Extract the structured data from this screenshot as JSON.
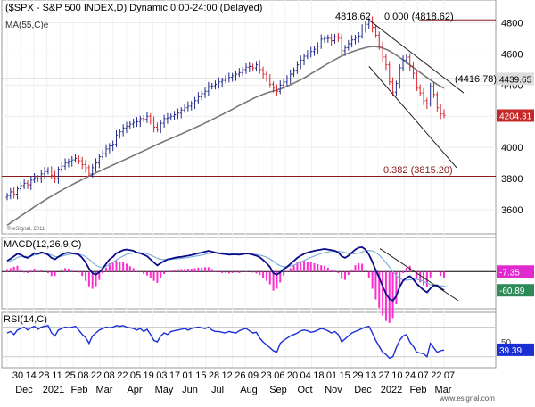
{
  "chart_data": {
    "type": "line",
    "colors": {
      "background": "#ffffff",
      "axis_bg": "#ffffff",
      "up_bar": "#1f2a8a",
      "down_bar": "#d8232a",
      "ma": "#777777",
      "level_line": "#8a1a1a",
      "trend_line": "#222222",
      "macd": "#0b0b8a",
      "signal": "#7fb0d8",
      "hist": "#ff2dd0",
      "rsi": "#1a2fd6",
      "price_tag_bg": "#c62828",
      "macd_tag_bg": "#e02ad0",
      "signal_tag_bg": "#2e8b57",
      "rsi_tag_bg": "#1a2fd6"
    },
    "panels": [
      {
        "id": "price",
        "title": "$SPX - S&P 500 INDEX,D) Dynamic,0:00-24:00 (Delayed)",
        "title_prefix": "(",
        "subtitle": "MA(55,C)e",
        "watermark": "© eSignal, 2011",
        "y_ticks": [
          3600,
          3800,
          4000,
          4200,
          4400,
          4600,
          4800
        ],
        "y_range": [
          3480,
          4900
        ],
        "last_price_label": "4204.31",
        "level_labels": [
          {
            "label": "4439.65",
            "value": 4439.65
          },
          {
            "label": "(4416.78)",
            "value": 4416.78
          }
        ],
        "annotations": [
          {
            "label": "4818.62",
            "value": 4818.62
          },
          {
            "label": "0.000 (4818.62)",
            "value": 4818.62
          },
          {
            "label": "0.382 (3815.20)",
            "value": 3815.2
          }
        ],
        "series": [
          {
            "kind": "ohlc",
            "values_close": [
              3690,
              3715,
              3700,
              3735,
              3755,
              3770,
              3760,
              3790,
              3805,
              3800,
              3830,
              3845,
              3855,
              3820,
              3800,
              3860,
              3880,
              3900,
              3910,
              3920,
              3930,
              3915,
              3890,
              3870,
              3830,
              3870,
              3900,
              3940,
              3960,
              3990,
              4010,
              4020,
              4080,
              4100,
              4125,
              4135,
              4150,
              4160,
              4165,
              4185,
              4180,
              4200,
              4175,
              4130,
              4115,
              4155,
              4185,
              4190,
              4200,
              4210,
              4220,
              4240,
              4255,
              4265,
              4280,
              4300,
              4325,
              4345,
              4360,
              4390,
              4395,
              4405,
              4420,
              4430,
              4440,
              4450,
              4460,
              4470,
              4480,
              4500,
              4515,
              4520,
              4510,
              4530,
              4500,
              4470,
              4440,
              4405,
              4380,
              4360,
              4400,
              4420,
              4440,
              4470,
              4495,
              4530,
              4560,
              4585,
              4600,
              4615,
              4630,
              4650,
              4695,
              4700,
              4700,
              4685,
              4710,
              4700,
              4620,
              4640,
              4665,
              4690,
              4705,
              4715,
              4760,
              4790,
              4810,
              4770,
              4720,
              4650,
              4580,
              4530,
              4420,
              4355,
              4410,
              4510,
              4560,
              4580,
              4520,
              4475,
              4380,
              4350,
              4300,
              4280,
              4390,
              4340,
              4255,
              4215,
              4205
            ],
            "ohlc_first_date": "2020-11-30",
            "ohlc_last_date": "2022-03-07"
          },
          {
            "name": "MA(55,C)",
            "values": [
              3500,
              3516,
              3531,
              3546,
              3561,
              3575,
              3590,
              3604,
              3619,
              3633,
              3647,
              3661,
              3674,
              3687,
              3700,
              3713,
              3725,
              3737,
              3749,
              3760,
              3772,
              3783,
              3794,
              3805,
              3816,
              3826,
              3837,
              3847,
              3857,
              3867,
              3877,
              3887,
              3897,
              3907,
              3917,
              3927,
              3937,
              3947,
              3958,
              3968,
              3978,
              3988,
              3999,
              4009,
              4019,
              4029,
              4039,
              4048,
              4058,
              4067,
              4077,
              4086,
              4096,
              4106,
              4116,
              4126,
              4136,
              4146,
              4157,
              4167,
              4178,
              4189,
              4200,
              4211,
              4222,
              4233,
              4245,
              4257,
              4269,
              4280,
              4291,
              4302,
              4313,
              4323,
              4332,
              4341,
              4349,
              4356,
              4362,
              4368,
              4375,
              4383,
              4392,
              4402,
              4412,
              4423,
              4434,
              4446,
              4459,
              4472,
              4485,
              4499,
              4512,
              4525,
              4538,
              4551,
              4563,
              4575,
              4586,
              4596,
              4605,
              4613,
              4621,
              4628,
              4634,
              4640,
              4645,
              4647,
              4647,
              4644,
              4638,
              4630,
              4619,
              4606,
              4592,
              4577,
              4561,
              4545,
              4529,
              4513,
              4497,
              4481,
              4465,
              4449,
              4433,
              4418,
              4404,
              4391,
              4380
            ]
          }
        ]
      },
      {
        "id": "macd",
        "title": "MACD(12,26,9,C)",
        "tag_values": [
          {
            "label": "-7.35",
            "value": -7.35
          },
          {
            "label": "-60.89",
            "value": -60.89
          }
        ],
        "y_ticks": [],
        "series": [
          {
            "name": "MACD",
            "values": [
              35,
              42,
              50,
              58,
              55,
              48,
              45,
              52,
              60,
              58,
              63,
              60,
              55,
              45,
              40,
              48,
              55,
              60,
              62,
              60,
              58,
              55,
              45,
              30,
              10,
              -5,
              -10,
              -2,
              10,
              25,
              40,
              48,
              60,
              65,
              70,
              72,
              70,
              68,
              62,
              60,
              55,
              50,
              40,
              30,
              20,
              28,
              34,
              40,
              42,
              45,
              47,
              48,
              50,
              52,
              54,
              57,
              60,
              62,
              65,
              68,
              65,
              62,
              60,
              58,
              57,
              55,
              56,
              56,
              55,
              57,
              59,
              58,
              55,
              52,
              47,
              38,
              28,
              15,
              -5,
              -10,
              -3,
              8,
              15,
              25,
              35,
              45,
              52,
              58,
              62,
              65,
              68,
              70,
              72,
              74,
              72,
              70,
              68,
              63,
              50,
              45,
              52,
              62,
              72,
              78,
              80,
              72,
              55,
              32,
              5,
              -20,
              -48,
              -72,
              -90,
              -95,
              -80,
              -50,
              -30,
              -20,
              -15,
              -25,
              -40,
              -50,
              -60,
              -68,
              -55,
              -45,
              -45,
              -55,
              -61
            ]
          },
          {
            "name": "Signal",
            "values": [
              30,
              35,
              40,
              46,
              50,
              50,
              48,
              50,
              54,
              56,
              59,
              60,
              58,
              54,
              49,
              48,
              50,
              53,
              56,
              58,
              58,
              57,
              54,
              49,
              40,
              30,
              20,
              15,
              14,
              17,
              23,
              30,
              38,
              45,
              51,
              56,
              59,
              61,
              61,
              61,
              60,
              58,
              54,
              49,
              43,
              40,
              39,
              39,
              40,
              41,
              42,
              43,
              45,
              46,
              48,
              50,
              52,
              54,
              56,
              59,
              60,
              61,
              61,
              61,
              60,
              59,
              59,
              58,
              58,
              58,
              58,
              58,
              57,
              56,
              54,
              51,
              47,
              41,
              34,
              25,
              19,
              16,
              16,
              18,
              21,
              26,
              31,
              36,
              42,
              46,
              51,
              55,
              59,
              62,
              64,
              66,
              66,
              66,
              65,
              62,
              59,
              58,
              59,
              61,
              64,
              68,
              69,
              67,
              62,
              54,
              42,
              29,
              15,
              0,
              -13,
              -22,
              -27,
              -28,
              -27,
              -25,
              -25,
              -28,
              -32,
              -37,
              -43,
              -46,
              -46,
              -46,
              -48,
              -50
            ]
          }
        ]
      },
      {
        "id": "rsi",
        "title": "RSI(14,C)",
        "tag_values": [
          {
            "label": "39.39",
            "value": 39.39
          }
        ],
        "y_ticks": [
          {
            "label": "50",
            "value": 50
          }
        ],
        "series": [
          {
            "name": "RSI",
            "values": [
              62,
              64,
              60,
              66,
              68,
              70,
              66,
              69,
              71,
              67,
              70,
              71,
              72,
              62,
              58,
              66,
              68,
              70,
              69,
              70,
              71,
              66,
              60,
              56,
              48,
              58,
              62,
              66,
              68,
              70,
              69,
              70,
              72,
              71,
              72,
              70,
              69,
              68,
              66,
              68,
              64,
              67,
              60,
              52,
              50,
              58,
              62,
              60,
              64,
              65,
              66,
              67,
              68,
              66,
              68,
              69,
              70,
              69,
              68,
              70,
              66,
              64,
              64,
              63,
              62,
              64,
              63,
              62,
              65,
              67,
              68,
              65,
              62,
              63,
              55,
              50,
              46,
              42,
              38,
              36,
              48,
              52,
              55,
              58,
              60,
              62,
              65,
              66,
              65,
              63,
              64,
              66,
              68,
              67,
              65,
              62,
              64,
              60,
              50,
              54,
              58,
              62,
              64,
              66,
              68,
              70,
              71,
              62,
              52,
              44,
              36,
              33,
              28,
              30,
              42,
              52,
              58,
              60,
              50,
              44,
              36,
              35,
              34,
              30,
              48,
              42,
              36,
              38,
              39
            ]
          }
        ]
      }
    ],
    "x_tick_labels_top": [
      "30",
      "14",
      "28",
      "11",
      "25",
      "08",
      "22",
      "08",
      "22",
      "05",
      "19",
      "03",
      "17",
      "01",
      "15",
      "28",
      "12",
      "26",
      "09",
      "23",
      "06",
      "20",
      "04",
      "18",
      "01",
      "15",
      "29",
      "13",
      "27",
      "10",
      "24",
      "07",
      "22",
      "07"
    ],
    "x_tick_labels_month": [
      "Dec",
      "2021",
      "Feb",
      "Mar",
      "Apr",
      "May",
      "Jun",
      "Jul",
      "Aug",
      "Sep",
      "Oct",
      "Nov",
      "Dec",
      "2022",
      "Feb",
      "Mar"
    ],
    "footer_credit": "www.esignal.com"
  }
}
